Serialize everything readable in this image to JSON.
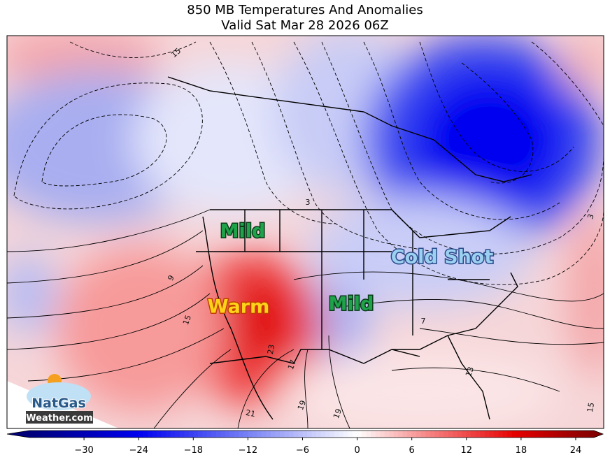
{
  "title": "850 MB Temperatures And Anomalies",
  "subtitle": "Valid Sat Mar 28 2026 06Z",
  "map_labels": [
    "Mild",
    "Warm",
    "Mild",
    "Cold Shot"
  ],
  "contour_labels": [
    "15",
    "3",
    "9",
    "15",
    "23",
    "17",
    "19",
    "21",
    "19",
    "13",
    "7",
    "15",
    "3"
  ],
  "logo": {
    "line1": "NatGas",
    "line2": "Weather.com"
  },
  "colorbar": {
    "lim": [
      -36,
      26
    ],
    "ticks": [
      {
        "value": -30,
        "label": "−30"
      },
      {
        "value": -24,
        "label": "−24"
      },
      {
        "value": -18,
        "label": "−18"
      },
      {
        "value": -12,
        "label": "−12"
      },
      {
        "value": -6,
        "label": "−6"
      },
      0,
      6,
      12,
      18,
      24
    ]
  }
}
